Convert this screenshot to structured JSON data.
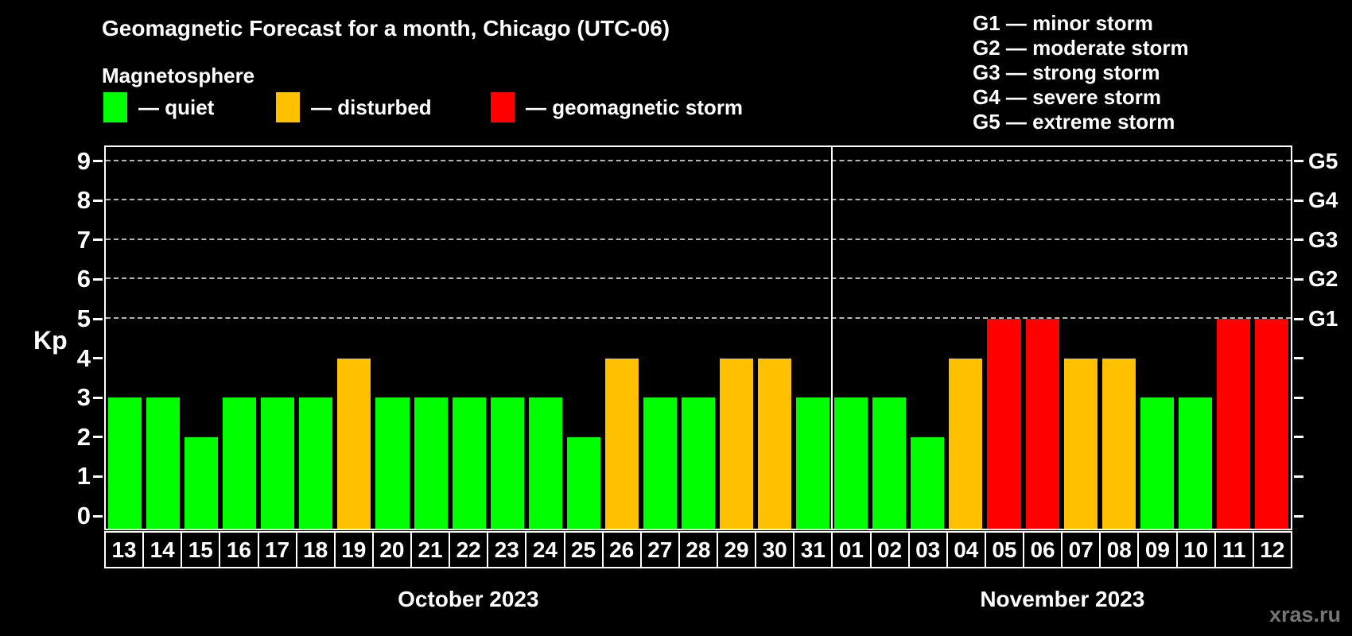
{
  "title": "Geomagnetic Forecast for a month, Chicago (UTC-06)",
  "subtitle": "Magnetosphere",
  "kp_axis_label": "Kp",
  "watermark": "xras.ru",
  "legend": {
    "items": [
      {
        "key": "quiet",
        "label": "— quiet",
        "color": "#00ff00"
      },
      {
        "key": "disturbed",
        "label": "— disturbed",
        "color": "#ffc000"
      },
      {
        "key": "storm",
        "label": "— geomagnetic storm",
        "color": "#ff0000"
      }
    ]
  },
  "g_legend": {
    "lines": [
      "G1 — minor storm",
      "G2 — moderate storm",
      "G3 — strong storm",
      "G4 — severe storm",
      "G5 — extreme storm"
    ]
  },
  "chart_data": {
    "type": "bar",
    "title": "Geomagnetic Forecast for a month, Chicago (UTC-06)",
    "ylabel": "Kp",
    "ylim": [
      0,
      9
    ],
    "grid": "dashed horizontal at storm levels only",
    "legend_position": "top",
    "y_ticks": [
      0,
      1,
      2,
      3,
      4,
      5,
      6,
      7,
      8,
      9
    ],
    "gridlines_at": [
      5,
      6,
      7,
      8,
      9
    ],
    "right_axis_labels": [
      {
        "value": 5,
        "label": "G1"
      },
      {
        "value": 6,
        "label": "G2"
      },
      {
        "value": 7,
        "label": "G3"
      },
      {
        "value": 8,
        "label": "G4"
      },
      {
        "value": 9,
        "label": "G5"
      }
    ],
    "months": [
      {
        "label": "October 2023",
        "days": 19
      },
      {
        "label": "November 2023",
        "days": 12
      }
    ],
    "categories": [
      "13",
      "14",
      "15",
      "16",
      "17",
      "18",
      "19",
      "20",
      "21",
      "22",
      "23",
      "24",
      "25",
      "26",
      "27",
      "28",
      "29",
      "30",
      "31",
      "01",
      "02",
      "03",
      "04",
      "05",
      "06",
      "07",
      "08",
      "09",
      "10",
      "11",
      "12"
    ],
    "values": [
      3,
      3,
      2,
      3,
      3,
      3,
      4,
      3,
      3,
      3,
      3,
      3,
      2,
      4,
      3,
      3,
      4,
      4,
      3,
      3,
      3,
      2,
      4,
      5,
      5,
      4,
      4,
      3,
      3,
      5,
      5
    ],
    "statuses": [
      "quiet",
      "quiet",
      "quiet",
      "quiet",
      "quiet",
      "quiet",
      "disturbed",
      "quiet",
      "quiet",
      "quiet",
      "quiet",
      "quiet",
      "quiet",
      "disturbed",
      "quiet",
      "quiet",
      "disturbed",
      "disturbed",
      "quiet",
      "quiet",
      "quiet",
      "quiet",
      "disturbed",
      "storm",
      "storm",
      "disturbed",
      "disturbed",
      "quiet",
      "quiet",
      "storm",
      "storm"
    ],
    "status_colors": {
      "quiet": "#00ff00",
      "disturbed": "#ffc000",
      "storm": "#ff0000"
    }
  }
}
